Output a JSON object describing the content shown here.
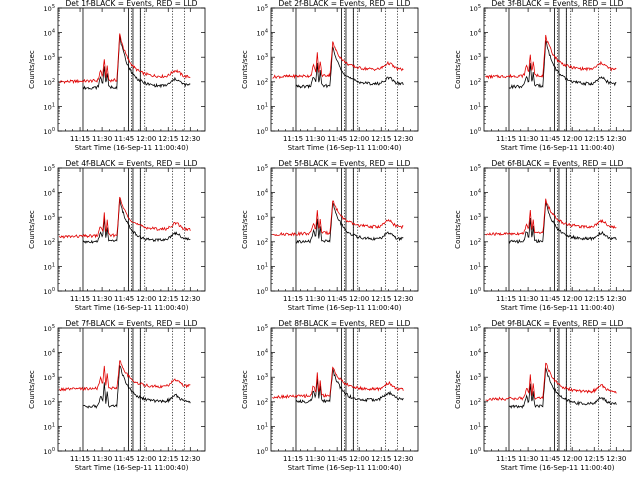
{
  "chart_data": {
    "type": "line",
    "xlabel": "Start Time (16-Sep-11 11:00:40)",
    "ylabel": "Counts/sec",
    "x_ticks": [
      "11:15",
      "11:30",
      "11:45",
      "12:00",
      "12:15",
      "12:30"
    ],
    "x_tick_minutes": [
      15,
      30,
      45,
      60,
      75,
      90
    ],
    "y_ticks": [
      "10^0",
      "10^1",
      "10^2",
      "10^3",
      "10^4",
      "10^5"
    ],
    "xlim_minutes": [
      0,
      100
    ],
    "ylim_log10": [
      0,
      5
    ],
    "y_scale": "log",
    "line_colors": {
      "events": "#000000",
      "lld": "#e00000"
    },
    "panels": [
      {
        "title": "Det 1f-BLACK = Events, RED = LLD",
        "events": {
          "base": 1.75,
          "peak": 3.85,
          "tail": 1.8
        },
        "lld": {
          "base": 2.0,
          "peak": 3.95,
          "tail": 2.2
        },
        "solid_lines_min": [
          17,
          48,
          51,
          56
        ],
        "dotted_lines_min": [
          50,
          56,
          59,
          78,
          86
        ]
      },
      {
        "title": "Det 2f-BLACK = Events, RED = LLD",
        "events": {
          "base": 1.8,
          "peak": 3.4,
          "tail": 1.9
        },
        "lld": {
          "base": 2.2,
          "peak": 3.6,
          "tail": 2.5
        },
        "solid_lines_min": [
          17,
          48,
          51,
          56
        ],
        "dotted_lines_min": [
          50,
          56,
          59,
          78,
          86
        ]
      },
      {
        "title": "Det 3f-BLACK = Events, RED = LLD",
        "events": {
          "base": 1.8,
          "peak": 3.7,
          "tail": 1.9
        },
        "lld": {
          "base": 2.2,
          "peak": 3.85,
          "tail": 2.5
        },
        "solid_lines_min": [
          17,
          48,
          51,
          56
        ],
        "dotted_lines_min": [
          50,
          56,
          59,
          78,
          86
        ]
      },
      {
        "title": "Det 4f-BLACK = Events, RED = LLD",
        "events": {
          "base": 2.0,
          "peak": 3.7,
          "tail": 2.0
        },
        "lld": {
          "base": 2.2,
          "peak": 3.8,
          "tail": 2.5
        },
        "solid_lines_min": [
          17,
          48,
          51,
          56
        ],
        "dotted_lines_min": [
          50,
          56,
          59,
          78,
          86
        ]
      },
      {
        "title": "Det 5f-BLACK = Events, RED = LLD",
        "events": {
          "base": 2.0,
          "peak": 3.6,
          "tail": 2.1
        },
        "lld": {
          "base": 2.3,
          "peak": 3.7,
          "tail": 2.6
        },
        "solid_lines_min": [
          17,
          48,
          51,
          56
        ],
        "dotted_lines_min": [
          50,
          56,
          59,
          78,
          86
        ]
      },
      {
        "title": "Det 6f-BLACK = Events, RED = LLD",
        "events": {
          "base": 2.0,
          "peak": 3.6,
          "tail": 2.1
        },
        "lld": {
          "base": 2.3,
          "peak": 3.7,
          "tail": 2.6
        },
        "solid_lines_min": [
          17,
          48,
          51,
          56
        ],
        "dotted_lines_min": [
          50,
          56,
          59,
          78,
          86
        ]
      },
      {
        "title": "Det 7f-BLACK = Events, RED = LLD",
        "events": {
          "base": 1.8,
          "peak": 3.5,
          "tail": 2.0
        },
        "lld": {
          "base": 2.5,
          "peak": 3.7,
          "tail": 2.6
        },
        "solid_lines_min": [
          17,
          48,
          51,
          56
        ],
        "dotted_lines_min": [
          50,
          56,
          59,
          78,
          86
        ]
      },
      {
        "title": "Det 8f-BLACK = Events, RED = LLD",
        "events": {
          "base": 2.0,
          "peak": 3.3,
          "tail": 2.0
        },
        "lld": {
          "base": 2.2,
          "peak": 3.4,
          "tail": 2.5
        },
        "solid_lines_min": [
          17,
          48,
          51,
          56
        ],
        "dotted_lines_min": [
          50,
          56,
          59,
          78,
          86
        ]
      },
      {
        "title": "Det 9f-BLACK = Events, RED = LLD",
        "events": {
          "base": 1.8,
          "peak": 3.4,
          "tail": 1.9
        },
        "lld": {
          "base": 2.1,
          "peak": 3.6,
          "tail": 2.4
        },
        "solid_lines_min": [
          17,
          48,
          51,
          56
        ],
        "dotted_lines_min": [
          50,
          56,
          59,
          78,
          86
        ]
      }
    ]
  }
}
